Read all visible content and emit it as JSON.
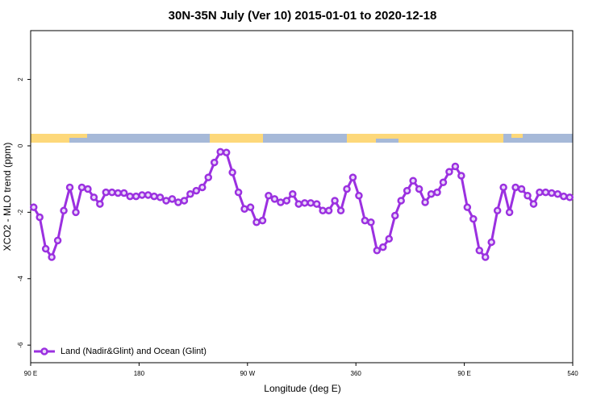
{
  "chart_data": {
    "type": "line",
    "title": "30N-35N July (Ver 10)   2015-01-01 to 2020-12-18",
    "xlabel": "Longitude (deg E)",
    "ylabel": "XCO2 - MLO trend (ppm)",
    "x": [
      92.5,
      97.5,
      102.5,
      107.5,
      112.5,
      117.5,
      122.5,
      127.5,
      132.5,
      137.5,
      142.5,
      147.5,
      152.5,
      157.5,
      162.5,
      167.5,
      172.5,
      177.5,
      182.5,
      187.5,
      192.5,
      197.5,
      202.5,
      207.5,
      212.5,
      217.5,
      222.5,
      227.5,
      232.5,
      237.5,
      242.5,
      247.5,
      252.5,
      257.5,
      262.5,
      267.5,
      272.5,
      277.5,
      282.5,
      287.5,
      292.5,
      297.5,
      302.5,
      307.5,
      312.5,
      317.5,
      322.5,
      327.5,
      332.5,
      337.5,
      342.5,
      347.5,
      352.5,
      357.5,
      362.5,
      367.5,
      372.5,
      377.5,
      382.5,
      387.5,
      392.5,
      397.5,
      402.5,
      407.5,
      412.5,
      417.5,
      422.5,
      427.5,
      432.5,
      437.5,
      442.5,
      447.5,
      452.5,
      457.5,
      462.5,
      467.5,
      472.5,
      477.5,
      482.5,
      487.5,
      492.5,
      497.5,
      502.5,
      507.5,
      512.5,
      517.5,
      522.5,
      527.5,
      532.5,
      537.5
    ],
    "series": [
      {
        "name": "Land (Nadir&Glint) and Ocean (Glint)",
        "color": "#9b30e0",
        "values": [
          -1.85,
          -2.15,
          -3.1,
          -3.35,
          -2.85,
          -1.95,
          -1.25,
          -2.0,
          -1.25,
          -1.3,
          -1.55,
          -1.75,
          -1.4,
          -1.4,
          -1.42,
          -1.42,
          -1.52,
          -1.52,
          -1.48,
          -1.48,
          -1.52,
          -1.55,
          -1.65,
          -1.6,
          -1.7,
          -1.65,
          -1.45,
          -1.35,
          -1.25,
          -0.95,
          -0.5,
          -0.18,
          -0.2,
          -0.8,
          -1.4,
          -1.9,
          -1.85,
          -2.3,
          -2.25,
          -1.5,
          -1.6,
          -1.7,
          -1.65,
          -1.45,
          -1.75,
          -1.72,
          -1.72,
          -1.75,
          -1.95,
          -1.95,
          -1.65,
          -1.95,
          -1.3,
          -0.95,
          -1.5,
          -2.25,
          -2.3,
          -3.15,
          -3.05,
          -2.8,
          -2.1,
          -1.65,
          -1.35,
          -1.05,
          -1.3,
          -1.7,
          -1.45,
          -1.4,
          -1.1,
          -0.78,
          -0.62,
          -0.9,
          -1.85,
          -2.2,
          -3.15,
          -3.35,
          -2.9,
          -1.95,
          -1.25,
          -2.0,
          -1.25,
          -1.3,
          -1.5,
          -1.75,
          -1.4,
          -1.4,
          -1.42,
          -1.45,
          -1.52,
          -1.55
        ]
      }
    ],
    "xlim": [
      90,
      540
    ],
    "xticks": [
      {
        "value": 90,
        "label": "90 E"
      },
      180,
      {
        "value": 270,
        "label": "90 W"
      },
      360,
      {
        "value": 450,
        "label": "90 E"
      },
      540
    ],
    "ylim": [
      -6.53,
      3.47
    ],
    "yticks": [
      -6,
      -4,
      -2,
      0,
      2
    ],
    "legend": "lower left"
  }
}
